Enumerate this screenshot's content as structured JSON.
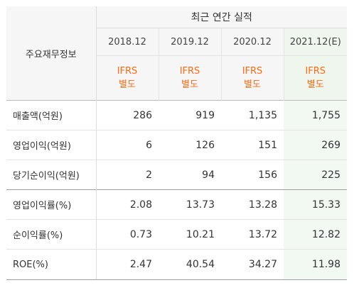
{
  "table": {
    "header_title": "최근 연간 실적",
    "row_label_header": "주요재무정보",
    "columns": [
      {
        "year": "2018.12",
        "basis_line1": "IFRS",
        "basis_line2": "별도",
        "highlight": false
      },
      {
        "year": "2019.12",
        "basis_line1": "IFRS",
        "basis_line2": "별도",
        "highlight": false
      },
      {
        "year": "2020.12",
        "basis_line1": "IFRS",
        "basis_line2": "별도",
        "highlight": false
      },
      {
        "year": "2021.12(E)",
        "basis_line1": "IFRS",
        "basis_line2": "별도",
        "highlight": true
      }
    ],
    "rows": [
      {
        "label": "매출액(억원)",
        "values": [
          "286",
          "919",
          "1,135",
          "1,755"
        ]
      },
      {
        "label": "영업이익(억원)",
        "values": [
          "6",
          "126",
          "151",
          "269"
        ]
      },
      {
        "label": "당기순이익(억원)",
        "values": [
          "2",
          "94",
          "156",
          "225"
        ]
      },
      {
        "label": "영업이익률(%)",
        "values": [
          "2.08",
          "13.73",
          "13.28",
          "15.33"
        ]
      },
      {
        "label": "순이익률(%)",
        "values": [
          "0.73",
          "10.21",
          "13.72",
          "12.82"
        ]
      },
      {
        "label": "ROE(%)",
        "values": [
          "2.47",
          "40.54",
          "34.27",
          "11.98"
        ]
      }
    ]
  },
  "colors": {
    "basis_text": "#ff6a13",
    "header_bg": "#f6f6f6",
    "estimate_column_bg": "#eef6ee"
  }
}
